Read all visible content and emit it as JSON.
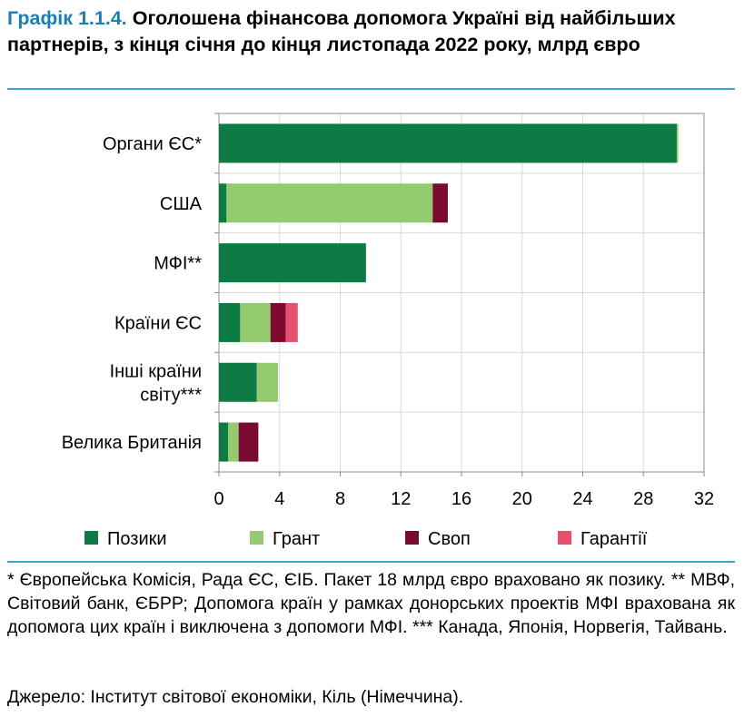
{
  "title": {
    "label": "Графік 1.1.4.",
    "text": "Оголошена фінансова допомога Україні від найбільших партнерів, з кінця січня до кінця листопада 2022 року, млрд євро"
  },
  "chart_data": {
    "type": "bar",
    "orientation": "horizontal",
    "stacked": true,
    "categories": [
      [
        "Органи ЄС*"
      ],
      [
        "США"
      ],
      [
        "МФІ**"
      ],
      [
        "Країни ЄС"
      ],
      [
        "Інші країни",
        "світу***"
      ],
      [
        "Велика Британія"
      ]
    ],
    "series": [
      {
        "name": "Позики",
        "color": "#0e7a44",
        "values": [
          30.2,
          0.5,
          9.7,
          1.4,
          2.5,
          0.6
        ]
      },
      {
        "name": "Грант",
        "color": "#93cb6e",
        "values": [
          0.1,
          13.6,
          0,
          2.0,
          1.4,
          0.7
        ]
      },
      {
        "name": "Своп",
        "color": "#7a0a2e",
        "values": [
          0,
          1.0,
          0,
          1.0,
          0,
          1.3
        ]
      },
      {
        "name": "Гарантії",
        "color": "#e64f6f",
        "values": [
          0,
          0,
          0,
          0.8,
          0,
          0
        ]
      }
    ],
    "xlim": [
      0,
      32
    ],
    "xticks": [
      0,
      4,
      8,
      12,
      16,
      20,
      24,
      28,
      32
    ],
    "grid": true,
    "legend_position": "bottom"
  },
  "notes": {
    "footnote": "* Європейська Комісія, Рада ЄС, ЄІБ. Пакет 18 млрд євро враховано як позику. ** МВФ, Світовий банк, ЄБРР; Допомога країн у рамках донорських проектів МФІ врахована як допомога цих країн і виключена з допомоги МФІ. *** Канада, Японія, Норвегія, Тайвань.",
    "source": "Джерело: Інститут світової економіки, Кіль (Німеччина)."
  }
}
